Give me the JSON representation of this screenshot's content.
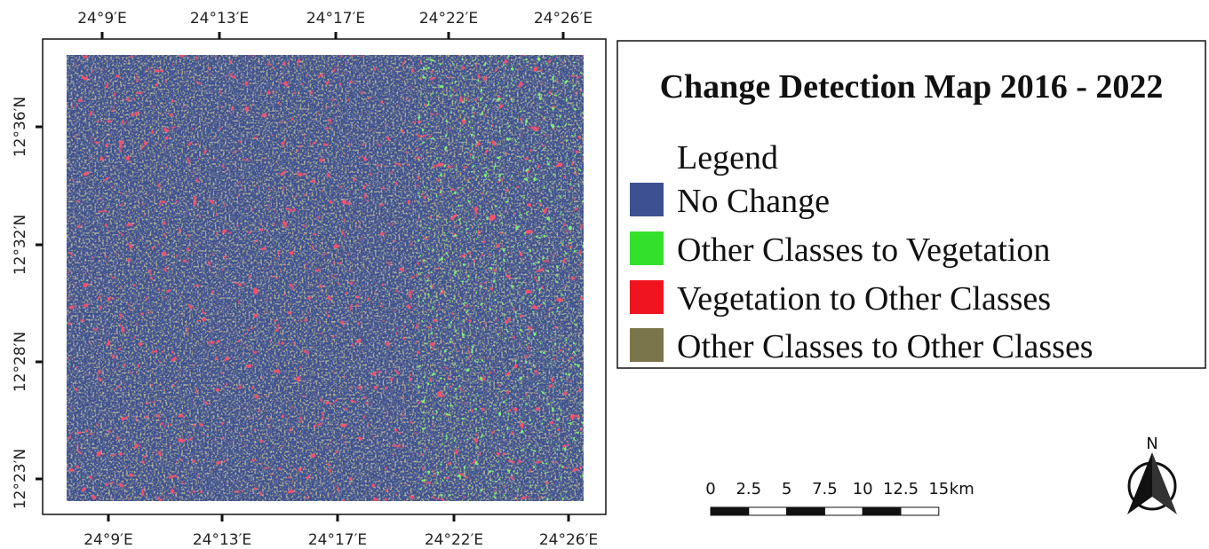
{
  "title": "Change Detection Map 2016 - 2022",
  "legend": {
    "heading": "Legend",
    "items": [
      {
        "label": "No Change",
        "color": "#3d5192"
      },
      {
        "label": "Other Classes to Vegetation",
        "color": "#33e12c"
      },
      {
        "label": "Vegetation to Other Classes",
        "color": "#f0141f"
      },
      {
        "label": "Other Classes to Other Classes",
        "color": "#7b754b"
      }
    ]
  },
  "top_axis": [
    "24°9′E",
    "24°13′E",
    "24°17′E",
    "24°22′E",
    "24°26′E"
  ],
  "bottom_axis": [
    "24°9′E",
    "24°13′E",
    "24°17′E",
    "24°22′E",
    "24°26′E"
  ],
  "left_axis": [
    "12°36′N",
    "12°32′N",
    "12°28′N",
    "12°23′N"
  ],
  "scale_bar": {
    "labels": [
      "0",
      "2.5",
      "5",
      "7.5",
      "10",
      "12.5",
      "15"
    ],
    "unit": "km"
  },
  "north": "N"
}
